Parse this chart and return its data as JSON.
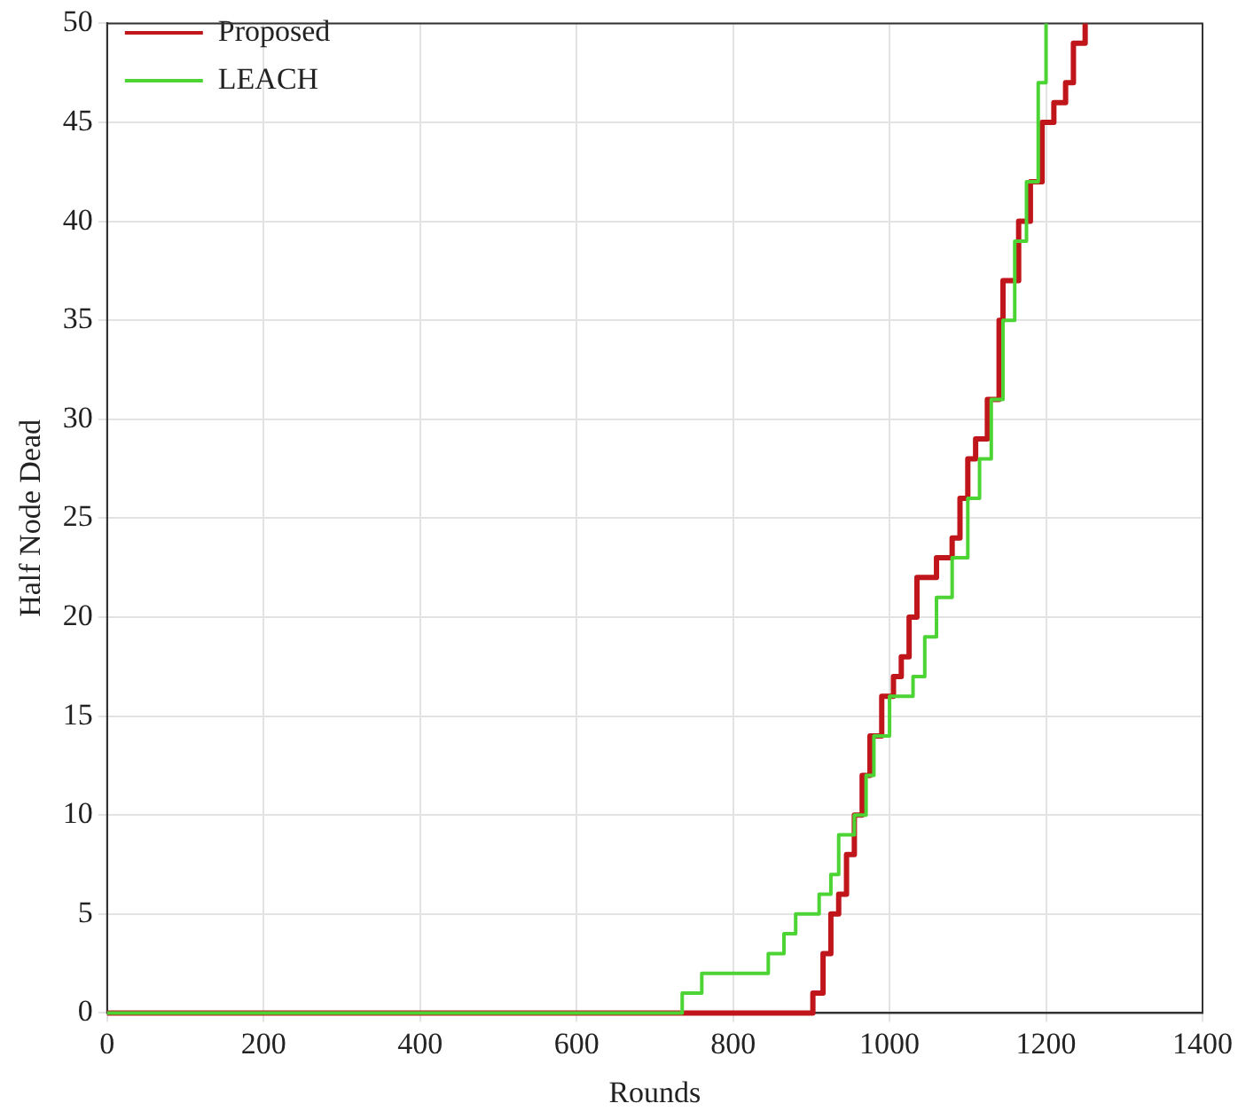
{
  "chart_data": {
    "type": "step",
    "xlabel": "Rounds",
    "ylabel": "Half Node Dead",
    "xlim": [
      0,
      1400
    ],
    "xticks": [
      0,
      200,
      400,
      600,
      800,
      1000,
      1200,
      1400
    ],
    "ylim": [
      0,
      50
    ],
    "yticks": [
      0,
      5,
      10,
      15,
      20,
      25,
      30,
      35,
      40,
      45,
      50
    ],
    "grid": true,
    "legend": "top left",
    "line_style": "solid",
    "marker": "none",
    "series": [
      {
        "name": "Proposed",
        "color": "#c0161b",
        "x": [
          0,
          902,
          915,
          925,
          935,
          945,
          955,
          965,
          975,
          990,
          1005,
          1015,
          1025,
          1035,
          1060,
          1080,
          1090,
          1100,
          1110,
          1125,
          1140,
          1145,
          1165,
          1180,
          1195,
          1210,
          1225,
          1235,
          1250
        ],
        "values": [
          0,
          1,
          3,
          5,
          6,
          8,
          10,
          12,
          14,
          16,
          17,
          18,
          20,
          22,
          23,
          24,
          26,
          28,
          29,
          31,
          35,
          37,
          40,
          42,
          45,
          46,
          47,
          49,
          50
        ]
      },
      {
        "name": "LEACH",
        "color": "#4cd435",
        "x": [
          0,
          735,
          760,
          845,
          865,
          880,
          910,
          925,
          935,
          955,
          970,
          980,
          1000,
          1030,
          1045,
          1060,
          1080,
          1100,
          1115,
          1130,
          1145,
          1160,
          1175,
          1190,
          1200
        ],
        "values": [
          0,
          1,
          2,
          3,
          4,
          5,
          6,
          7,
          9,
          10,
          12,
          14,
          16,
          17,
          19,
          21,
          23,
          26,
          28,
          31,
          35,
          39,
          42,
          47,
          50
        ]
      }
    ]
  }
}
